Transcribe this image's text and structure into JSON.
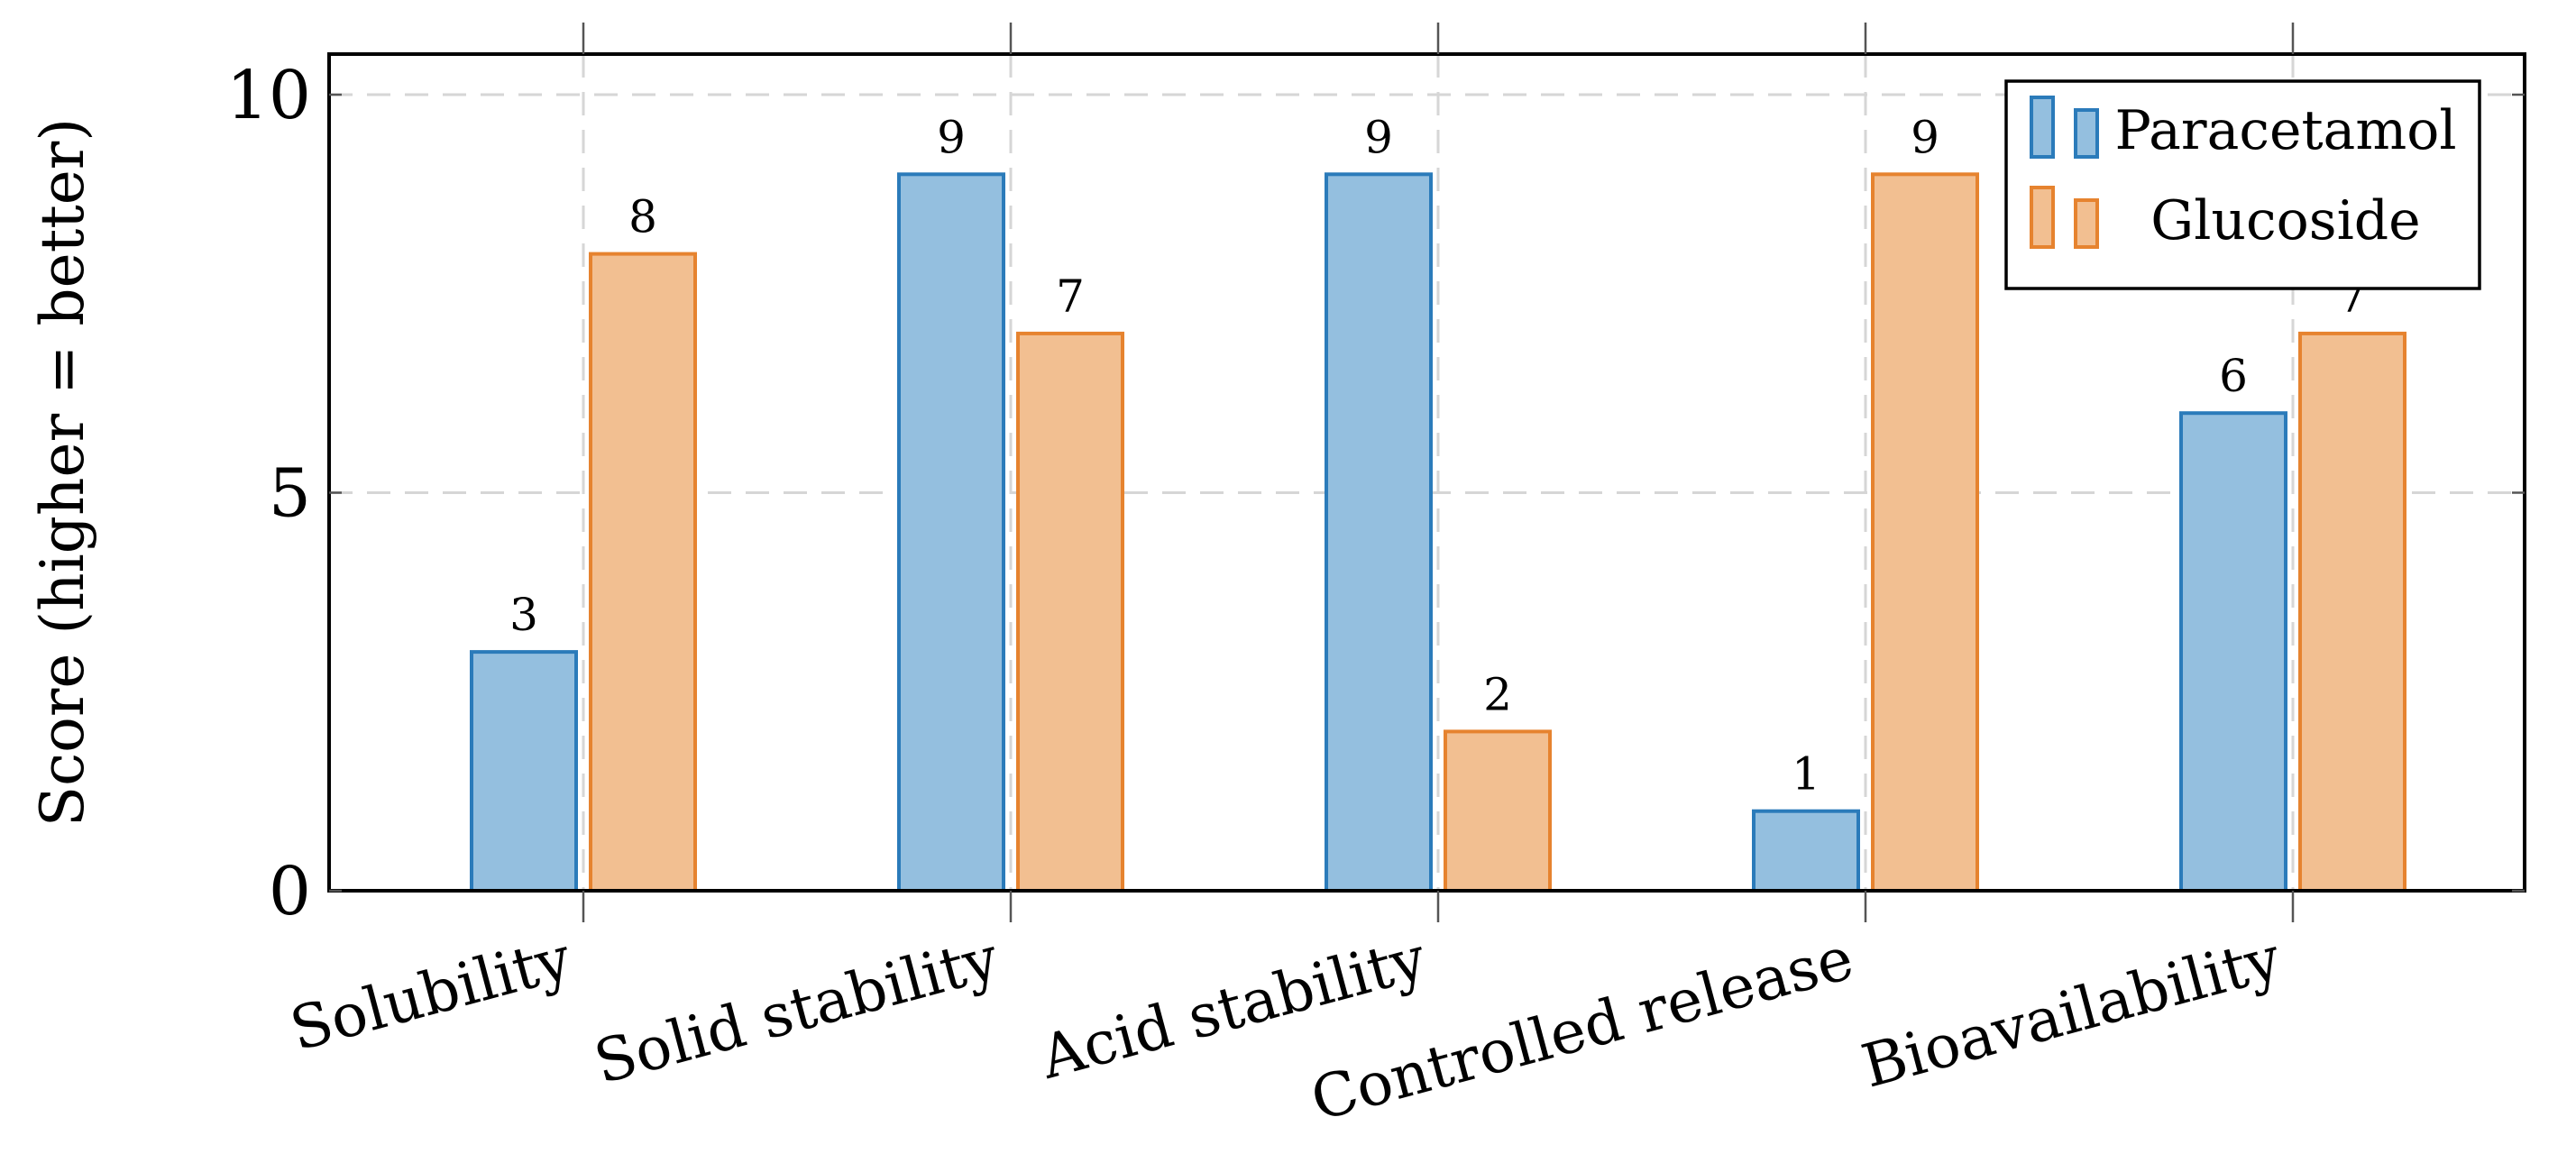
{
  "chart_data": {
    "type": "bar",
    "title": "",
    "xlabel": "",
    "ylabel": "Score (higher = better)",
    "ylim": [
      0,
      10.5
    ],
    "yticks": [
      0,
      5,
      10
    ],
    "grid": true,
    "legend_position": "top-right",
    "categories": [
      "Solubility",
      "Solid stability",
      "Acid stability",
      "Controlled release",
      "Bioavailability"
    ],
    "series": [
      {
        "name": "Paracetamol",
        "values": [
          3,
          9,
          9,
          1,
          6
        ],
        "fill": "#94bfdf",
        "stroke": "#2b7bba"
      },
      {
        "name": "Glucoside",
        "values": [
          8,
          7,
          2,
          9,
          7
        ],
        "fill": "#f2bf91",
        "stroke": "#e6832f"
      }
    ]
  }
}
